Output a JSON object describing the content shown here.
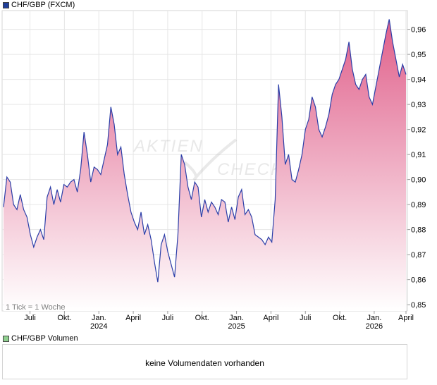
{
  "legend": {
    "main_label": "CHF/GBP (FXCM)",
    "main_color": "#1f3f9a",
    "volume_label": "CHF/GBP Volumen",
    "volume_color": "#8fd08f"
  },
  "tick_note": "1 Tick = 1 Woche",
  "watermark": {
    "line1": "AKTIEN",
    "line2": "CHECK"
  },
  "volume_message": "keine Volumendaten vorhanden",
  "colors": {
    "line": "#2b3ea8",
    "fill_top": "#e05f8a",
    "fill_bottom": "#ffffff",
    "grid": "#e6e6e6"
  },
  "chart_data": {
    "type": "area",
    "title": "CHF/GBP (FXCM)",
    "xlabel": "",
    "ylabel": "",
    "x_range_weeks": [
      0,
      152
    ],
    "ylim": [
      0.8475,
      0.9675
    ],
    "y_ticks": [
      "0,85",
      "0,86",
      "0,87",
      "0,88",
      "0,89",
      "0,90",
      "0,91",
      "0,92",
      "0,93",
      "0,94",
      "0,95",
      "0,96"
    ],
    "y_tick_values": [
      0.85,
      0.86,
      0.87,
      0.88,
      0.89,
      0.9,
      0.91,
      0.92,
      0.93,
      0.94,
      0.95,
      0.96
    ],
    "x_ticks": [
      {
        "week": 10,
        "label": "Juli",
        "year": ""
      },
      {
        "week": 23,
        "label": "Okt.",
        "year": ""
      },
      {
        "week": 36,
        "label": "Jan.",
        "year": "2024"
      },
      {
        "week": 49,
        "label": "April",
        "year": ""
      },
      {
        "week": 62,
        "label": "Juli",
        "year": ""
      },
      {
        "week": 75,
        "label": "Okt.",
        "year": ""
      },
      {
        "week": 88,
        "label": "Jan.",
        "year": "2025"
      },
      {
        "week": 101,
        "label": "April",
        "year": ""
      },
      {
        "week": 114,
        "label": "Juli",
        "year": ""
      },
      {
        "week": 127,
        "label": "Okt.",
        "year": ""
      },
      {
        "week": 140,
        "label": "Jan.",
        "year": "2026"
      },
      {
        "week": 152,
        "label": "April",
        "year": ""
      }
    ],
    "series": [
      {
        "name": "CHF/GBP",
        "values": [
          0.889,
          0.901,
          0.899,
          0.89,
          0.888,
          0.894,
          0.888,
          0.885,
          0.878,
          0.873,
          0.877,
          0.88,
          0.876,
          0.893,
          0.897,
          0.89,
          0.896,
          0.891,
          0.898,
          0.897,
          0.899,
          0.9,
          0.895,
          0.904,
          0.919,
          0.91,
          0.899,
          0.905,
          0.904,
          0.902,
          0.908,
          0.914,
          0.929,
          0.922,
          0.91,
          0.913,
          0.902,
          0.894,
          0.887,
          0.883,
          0.88,
          0.887,
          0.878,
          0.882,
          0.876,
          0.867,
          0.859,
          0.874,
          0.878,
          0.871,
          0.866,
          0.861,
          0.878,
          0.91,
          0.906,
          0.897,
          0.892,
          0.899,
          0.897,
          0.885,
          0.892,
          0.887,
          0.891,
          0.889,
          0.886,
          0.892,
          0.891,
          0.883,
          0.889,
          0.884,
          0.893,
          0.896,
          0.886,
          0.888,
          0.885,
          0.878,
          0.877,
          0.876,
          0.874,
          0.877,
          0.875,
          0.892,
          0.938,
          0.925,
          0.906,
          0.91,
          0.9,
          0.899,
          0.904,
          0.91,
          0.92,
          0.924,
          0.933,
          0.929,
          0.92,
          0.917,
          0.921,
          0.926,
          0.934,
          0.938,
          0.94,
          0.944,
          0.948,
          0.955,
          0.944,
          0.938,
          0.936,
          0.94,
          0.942,
          0.933,
          0.93,
          0.937,
          0.944,
          0.951,
          0.958,
          0.964,
          0.955,
          0.948,
          0.941,
          0.946,
          0.942
        ]
      }
    ]
  }
}
